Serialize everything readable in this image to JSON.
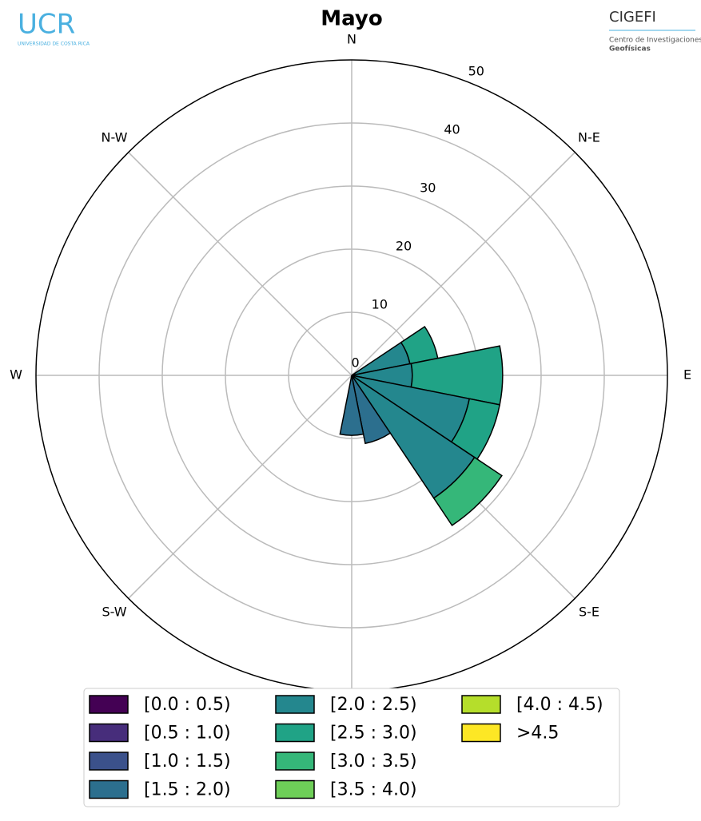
{
  "logos": {
    "left_title": "UCR",
    "left_subtitle": "UNIVERSIDAD DE COSTA RICA",
    "right_title": "CIGEFI",
    "right_line1": "Centro de Investigaciones",
    "right_line2": "Geofísicas"
  },
  "chart_data": {
    "type": "windrose",
    "title": "Mayo",
    "categories": [
      "N",
      null,
      "N-E",
      null,
      "E",
      null,
      "S-E",
      null,
      "S",
      null,
      "S-W",
      null,
      "W",
      null,
      "N-W",
      null
    ],
    "ylim": [
      0,
      50
    ],
    "yticks": [
      0,
      10,
      20,
      30,
      40,
      50
    ],
    "grid": true,
    "legend": "lower center",
    "series": [
      {
        "name": "[0.0 : 0.5)",
        "color": "#440154",
        "values": [
          0,
          0,
          0,
          0,
          0,
          0,
          0,
          0,
          0,
          0,
          0,
          0,
          0,
          0,
          0,
          0
        ]
      },
      {
        "name": "[0.5 : 1.0)",
        "color": "#472d7b",
        "values": [
          0,
          0,
          0,
          0,
          0,
          0,
          0,
          0,
          0,
          0,
          0,
          0,
          0,
          0,
          0,
          0
        ]
      },
      {
        "name": "[1.0 : 1.5)",
        "color": "#3b518b",
        "values": [
          0,
          0,
          0,
          0,
          0,
          0,
          0,
          0,
          0,
          0,
          0,
          0,
          0,
          0,
          0,
          0
        ]
      },
      {
        "name": "[1.5 : 2.0)",
        "color": "#2c6f8e",
        "values": [
          0,
          0,
          0,
          0,
          0,
          0,
          0,
          11,
          9.5,
          0,
          0,
          0,
          0,
          0,
          0,
          0
        ]
      },
      {
        "name": "[2.0 : 2.5)",
        "color": "#24878e",
        "values": [
          0,
          0,
          0,
          9.4,
          9.6,
          19,
          23.4,
          0,
          0,
          0,
          0,
          0,
          0,
          0,
          0,
          0
        ]
      },
      {
        "name": "[2.5 : 3.0)",
        "color": "#20a386",
        "values": [
          0,
          0,
          0,
          4.5,
          14.3,
          4.9,
          0,
          0,
          0,
          0,
          0,
          0,
          0,
          0,
          0,
          0
        ]
      },
      {
        "name": "[3.0 : 3.5)",
        "color": "#35b779",
        "values": [
          0,
          0,
          0,
          0,
          0,
          0,
          5.2,
          0,
          0,
          0,
          0,
          0,
          0,
          0,
          0,
          0
        ]
      },
      {
        "name": "[3.5 : 4.0)",
        "color": "#6ece58",
        "values": [
          0,
          0,
          0,
          0,
          0,
          0,
          0,
          0,
          0,
          0,
          0,
          0,
          0,
          0,
          0,
          0
        ]
      },
      {
        "name": "[4.0 : 4.5)",
        "color": "#b5de2b",
        "values": [
          0,
          0,
          0,
          0,
          0,
          0,
          0,
          0,
          0,
          0,
          0,
          0,
          0,
          0,
          0,
          0
        ]
      },
      {
        "name": ">4.5",
        "color": "#fde725",
        "values": [
          0,
          0,
          0,
          0,
          0,
          0,
          0,
          0,
          0,
          0,
          0,
          0,
          0,
          0,
          0,
          0
        ]
      }
    ]
  }
}
